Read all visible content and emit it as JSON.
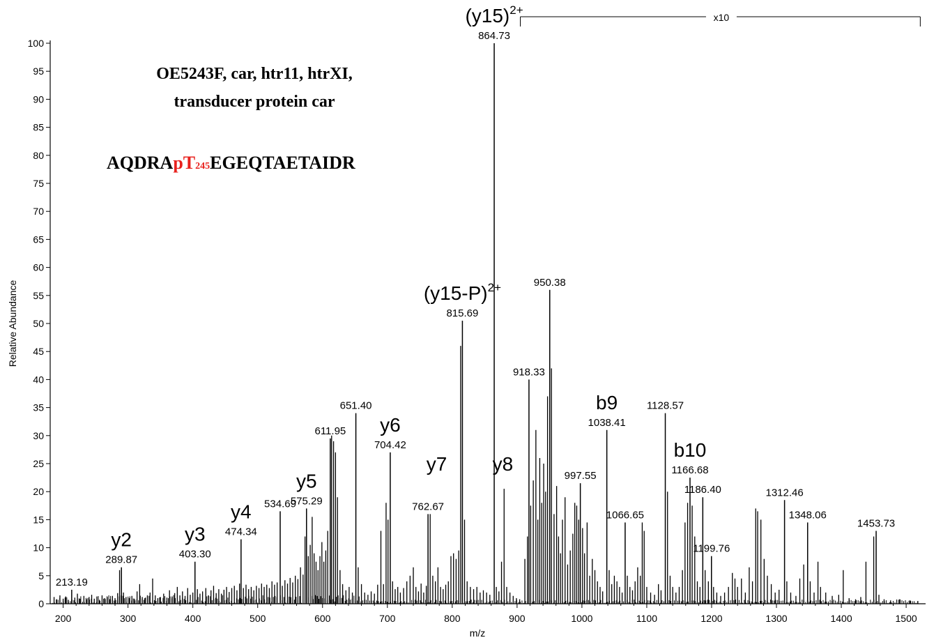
{
  "chart_data": {
    "type": "bar",
    "xlabel": "m/z",
    "ylabel": "Relative Abundance",
    "xlim": [
      180,
      1530
    ],
    "ylim": [
      0,
      100
    ],
    "xticks": [
      200,
      300,
      400,
      500,
      600,
      700,
      800,
      900,
      1000,
      1100,
      1200,
      1300,
      1400,
      1500
    ],
    "yticks": [
      0,
      5,
      10,
      15,
      20,
      25,
      30,
      35,
      40,
      45,
      50,
      55,
      60,
      65,
      70,
      75,
      80,
      85,
      90,
      95,
      100
    ],
    "grid": false,
    "legend": "none",
    "annotation": {
      "title_lines": [
        "OE5243F, car, htr11, htrXI,",
        "transducer protein car"
      ],
      "sequence": {
        "prefix": "AQDRA",
        "modified": "pT",
        "position": "245",
        "suffix": "EGEQTAETAIDR"
      },
      "zoom_label": "x10",
      "zoom_range": [
        905,
        1525
      ]
    },
    "labeled_peaks": [
      {
        "mz": 213.19,
        "y": 2.5,
        "label": "213.19"
      },
      {
        "mz": 289.87,
        "y": 6.5,
        "label": "289.87"
      },
      {
        "mz": 403.3,
        "y": 7.5,
        "label": "403.30"
      },
      {
        "mz": 474.34,
        "y": 11.5,
        "label": "474.34"
      },
      {
        "mz": 534.69,
        "y": 16.5,
        "label": "534.69"
      },
      {
        "mz": 575.29,
        "y": 17.0,
        "label": "575.29"
      },
      {
        "mz": 611.95,
        "y": 29.5,
        "label": "611.95"
      },
      {
        "mz": 651.4,
        "y": 34.0,
        "label": "651.40"
      },
      {
        "mz": 704.42,
        "y": 27.0,
        "label": "704.42"
      },
      {
        "mz": 762.67,
        "y": 16.0,
        "label": "762.67"
      },
      {
        "mz": 815.69,
        "y": 50.5,
        "label": "815.69"
      },
      {
        "mz": 864.73,
        "y": 100.0,
        "label": "864.73"
      },
      {
        "mz": 918.33,
        "y": 40.0,
        "label": "918.33"
      },
      {
        "mz": 950.38,
        "y": 56.0,
        "label": "950.38"
      },
      {
        "mz": 997.55,
        "y": 21.5,
        "label": "997.55"
      },
      {
        "mz": 1038.41,
        "y": 31.0,
        "label": "1038.41"
      },
      {
        "mz": 1066.65,
        "y": 14.5,
        "label": "1066.65"
      },
      {
        "mz": 1128.57,
        "y": 34.0,
        "label": "1128.57"
      },
      {
        "mz": 1166.68,
        "y": 22.5,
        "label": "1166.68"
      },
      {
        "mz": 1186.4,
        "y": 19.0,
        "label": "1186.40"
      },
      {
        "mz": 1199.76,
        "y": 8.5,
        "label": "1199.76"
      },
      {
        "mz": 1312.46,
        "y": 18.5,
        "label": "1312.46"
      },
      {
        "mz": 1348.06,
        "y": 14.5,
        "label": "1348.06"
      },
      {
        "mz": 1453.73,
        "y": 13.0,
        "label": "1453.73"
      }
    ],
    "ion_annotations": [
      {
        "text": "y2",
        "sup": "",
        "mz": 289.87
      },
      {
        "text": "y3",
        "sup": "",
        "mz": 403.3
      },
      {
        "text": "y4",
        "sup": "",
        "mz": 474.34
      },
      {
        "text": "y5",
        "sup": "",
        "mz": 575.29
      },
      {
        "text": "y6",
        "sup": "",
        "mz": 704.42
      },
      {
        "text": "y7",
        "sup": "",
        "mz": 776.0
      },
      {
        "text": "y8",
        "sup": "",
        "mz": 878.0
      },
      {
        "text": "(y15-P)",
        "sup": "2+",
        "mz": 815.69
      },
      {
        "text": "(y15)",
        "sup": "2+",
        "mz": 864.73
      },
      {
        "text": "b9",
        "sup": "",
        "mz": 1038.41
      },
      {
        "text": "b10",
        "sup": "",
        "mz": 1166.68
      }
    ],
    "minor_peaks": [
      [
        186,
        1.2
      ],
      [
        190,
        0.8
      ],
      [
        195,
        1.5
      ],
      [
        200,
        0.9
      ],
      [
        204,
        1.3
      ],
      [
        208,
        0.7
      ],
      [
        218,
        1.1
      ],
      [
        222,
        1.8
      ],
      [
        226,
        0.9
      ],
      [
        232,
        1.4
      ],
      [
        236,
        0.8
      ],
      [
        240,
        1.2
      ],
      [
        244,
        1.6
      ],
      [
        248,
        0.9
      ],
      [
        252,
        1.3
      ],
      [
        256,
        0.7
      ],
      [
        260,
        1.5
      ],
      [
        264,
        1.0
      ],
      [
        268,
        1.2
      ],
      [
        272,
        0.8
      ],
      [
        276,
        1.4
      ],
      [
        280,
        1.0
      ],
      [
        284,
        1.9
      ],
      [
        287,
        6.0
      ],
      [
        293,
        2.0
      ],
      [
        297,
        1.2
      ],
      [
        302,
        1.0
      ],
      [
        306,
        1.4
      ],
      [
        310,
        0.9
      ],
      [
        314,
        2.2
      ],
      [
        318,
        3.5
      ],
      [
        322,
        1.2
      ],
      [
        326,
        1.0
      ],
      [
        330,
        1.4
      ],
      [
        334,
        2.0
      ],
      [
        338,
        4.5
      ],
      [
        342,
        1.5
      ],
      [
        346,
        1.0
      ],
      [
        350,
        1.2
      ],
      [
        355,
        1.8
      ],
      [
        360,
        1.1
      ],
      [
        364,
        2.4
      ],
      [
        368,
        1.3
      ],
      [
        372,
        1.9
      ],
      [
        376,
        3.0
      ],
      [
        380,
        1.5
      ],
      [
        384,
        2.2
      ],
      [
        388,
        1.4
      ],
      [
        392,
        2.8
      ],
      [
        396,
        1.6
      ],
      [
        400,
        2.0
      ],
      [
        407,
        2.6
      ],
      [
        411,
        1.8
      ],
      [
        415,
        2.2
      ],
      [
        420,
        2.8
      ],
      [
        424,
        1.5
      ],
      [
        428,
        2.4
      ],
      [
        432,
        3.2
      ],
      [
        436,
        1.9
      ],
      [
        440,
        2.6
      ],
      [
        444,
        1.8
      ],
      [
        448,
        2.5
      ],
      [
        452,
        3.0
      ],
      [
        456,
        2.1
      ],
      [
        460,
        2.8
      ],
      [
        464,
        3.2
      ],
      [
        468,
        2.4
      ],
      [
        472,
        3.6
      ],
      [
        478,
        2.8
      ],
      [
        482,
        3.4
      ],
      [
        486,
        2.6
      ],
      [
        490,
        3.0
      ],
      [
        494,
        2.4
      ],
      [
        498,
        3.2
      ],
      [
        502,
        2.8
      ],
      [
        506,
        3.6
      ],
      [
        510,
        3.0
      ],
      [
        514,
        3.4
      ],
      [
        518,
        2.8
      ],
      [
        522,
        4.0
      ],
      [
        526,
        3.4
      ],
      [
        530,
        3.8
      ],
      [
        538,
        3.2
      ],
      [
        542,
        4.2
      ],
      [
        546,
        3.6
      ],
      [
        550,
        4.6
      ],
      [
        554,
        3.8
      ],
      [
        558,
        5.0
      ],
      [
        562,
        4.4
      ],
      [
        566,
        6.5
      ],
      [
        570,
        5.2
      ],
      [
        573,
        12.0
      ],
      [
        578,
        8.5
      ],
      [
        581,
        10.5
      ],
      [
        584,
        15.5
      ],
      [
        587,
        9.0
      ],
      [
        590,
        7.5
      ],
      [
        593,
        6.0
      ],
      [
        596,
        8.5
      ],
      [
        599,
        11.0
      ],
      [
        602,
        7.5
      ],
      [
        605,
        9.5
      ],
      [
        608,
        13.0
      ],
      [
        614,
        30.0
      ],
      [
        617,
        29.0
      ],
      [
        620,
        27.0
      ],
      [
        623,
        19.0
      ],
      [
        627,
        6.0
      ],
      [
        631,
        3.5
      ],
      [
        636,
        2.4
      ],
      [
        641,
        3.0
      ],
      [
        646,
        2.0
      ],
      [
        655,
        6.5
      ],
      [
        660,
        3.5
      ],
      [
        665,
        2.0
      ],
      [
        670,
        1.6
      ],
      [
        675,
        2.2
      ],
      [
        680,
        1.8
      ],
      [
        685,
        3.4
      ],
      [
        690,
        13.0
      ],
      [
        694,
        3.5
      ],
      [
        698,
        18.0
      ],
      [
        701,
        15.0
      ],
      [
        708,
        4.0
      ],
      [
        712,
        2.6
      ],
      [
        716,
        3.0
      ],
      [
        720,
        2.0
      ],
      [
        725,
        2.8
      ],
      [
        730,
        4.0
      ],
      [
        735,
        5.0
      ],
      [
        740,
        6.5
      ],
      [
        744,
        3.0
      ],
      [
        748,
        2.2
      ],
      [
        752,
        3.6
      ],
      [
        756,
        2.0
      ],
      [
        760,
        3.2
      ],
      [
        766,
        16.0
      ],
      [
        770,
        5.0
      ],
      [
        774,
        4.0
      ],
      [
        778,
        6.5
      ],
      [
        782,
        3.0
      ],
      [
        786,
        2.6
      ],
      [
        790,
        3.4
      ],
      [
        794,
        4.0
      ],
      [
        798,
        8.5
      ],
      [
        802,
        9.0
      ],
      [
        806,
        8.0
      ],
      [
        810,
        9.5
      ],
      [
        813,
        46.0
      ],
      [
        819,
        15.0
      ],
      [
        823,
        4.0
      ],
      [
        828,
        3.0
      ],
      [
        833,
        2.6
      ],
      [
        838,
        3.0
      ],
      [
        843,
        2.0
      ],
      [
        848,
        2.4
      ],
      [
        853,
        2.0
      ],
      [
        858,
        1.6
      ],
      [
        868,
        3.0
      ],
      [
        872,
        2.2
      ],
      [
        876,
        7.5
      ],
      [
        880,
        20.5
      ],
      [
        884,
        3.0
      ],
      [
        889,
        2.0
      ],
      [
        894,
        1.4
      ],
      [
        899,
        1.0
      ],
      [
        904,
        0.8
      ],
      [
        912,
        8.0
      ],
      [
        916,
        12.0
      ],
      [
        921,
        17.5
      ],
      [
        925,
        22.0
      ],
      [
        929,
        31.0
      ],
      [
        932,
        15.0
      ],
      [
        935,
        26.0
      ],
      [
        938,
        18.0
      ],
      [
        941,
        25.0
      ],
      [
        944,
        20.0
      ],
      [
        947,
        37.0
      ],
      [
        953,
        42.0
      ],
      [
        957,
        16.0
      ],
      [
        961,
        21.0
      ],
      [
        964,
        12.0
      ],
      [
        967,
        9.0
      ],
      [
        970,
        15.0
      ],
      [
        974,
        19.0
      ],
      [
        978,
        7.0
      ],
      [
        982,
        9.5
      ],
      [
        986,
        12.5
      ],
      [
        989,
        18.0
      ],
      [
        992,
        17.5
      ],
      [
        995,
        15.0
      ],
      [
        1001,
        13.5
      ],
      [
        1004,
        9.0
      ],
      [
        1008,
        14.5
      ],
      [
        1012,
        5.0
      ],
      [
        1016,
        8.0
      ],
      [
        1020,
        6.0
      ],
      [
        1024,
        4.0
      ],
      [
        1028,
        3.0
      ],
      [
        1032,
        2.2
      ],
      [
        1042,
        6.0
      ],
      [
        1046,
        3.5
      ],
      [
        1050,
        5.0
      ],
      [
        1054,
        4.0
      ],
      [
        1058,
        3.0
      ],
      [
        1062,
        2.0
      ],
      [
        1070,
        5.0
      ],
      [
        1074,
        3.0
      ],
      [
        1078,
        2.4
      ],
      [
        1082,
        4.0
      ],
      [
        1086,
        6.5
      ],
      [
        1090,
        5.0
      ],
      [
        1093,
        14.5
      ],
      [
        1096,
        13.0
      ],
      [
        1100,
        3.0
      ],
      [
        1106,
        2.0
      ],
      [
        1112,
        1.6
      ],
      [
        1118,
        3.5
      ],
      [
        1122,
        2.4
      ],
      [
        1132,
        20.0
      ],
      [
        1136,
        5.0
      ],
      [
        1140,
        3.0
      ],
      [
        1145,
        2.0
      ],
      [
        1150,
        3.0
      ],
      [
        1155,
        6.0
      ],
      [
        1159,
        14.5
      ],
      [
        1163,
        18.0
      ],
      [
        1170,
        17.5
      ],
      [
        1174,
        12.0
      ],
      [
        1178,
        4.0
      ],
      [
        1182,
        3.0
      ],
      [
        1190,
        6.0
      ],
      [
        1195,
        4.0
      ],
      [
        1203,
        3.0
      ],
      [
        1208,
        2.0
      ],
      [
        1214,
        1.4
      ],
      [
        1220,
        2.0
      ],
      [
        1226,
        3.0
      ],
      [
        1232,
        5.5
      ],
      [
        1236,
        4.5
      ],
      [
        1240,
        3.0
      ],
      [
        1246,
        4.5
      ],
      [
        1252,
        2.0
      ],
      [
        1258,
        6.5
      ],
      [
        1263,
        4.0
      ],
      [
        1268,
        17.0
      ],
      [
        1271,
        16.5
      ],
      [
        1276,
        15.0
      ],
      [
        1281,
        8.0
      ],
      [
        1286,
        5.0
      ],
      [
        1292,
        3.5
      ],
      [
        1298,
        2.0
      ],
      [
        1304,
        2.5
      ],
      [
        1316,
        4.0
      ],
      [
        1322,
        2.0
      ],
      [
        1330,
        1.4
      ],
      [
        1336,
        4.5
      ],
      [
        1342,
        7.0
      ],
      [
        1352,
        4.0
      ],
      [
        1358,
        2.0
      ],
      [
        1364,
        7.5
      ],
      [
        1368,
        3.0
      ],
      [
        1376,
        2.0
      ],
      [
        1386,
        1.4
      ],
      [
        1396,
        1.6
      ],
      [
        1403,
        6.0
      ],
      [
        1412,
        1.0
      ],
      [
        1422,
        0.8
      ],
      [
        1430,
        1.2
      ],
      [
        1438,
        7.5
      ],
      [
        1450,
        12.0
      ],
      [
        1458,
        1.6
      ],
      [
        1466,
        0.8
      ],
      [
        1476,
        0.6
      ],
      [
        1490,
        0.8
      ],
      [
        1506,
        0.6
      ],
      [
        1518,
        0.5
      ]
    ]
  }
}
